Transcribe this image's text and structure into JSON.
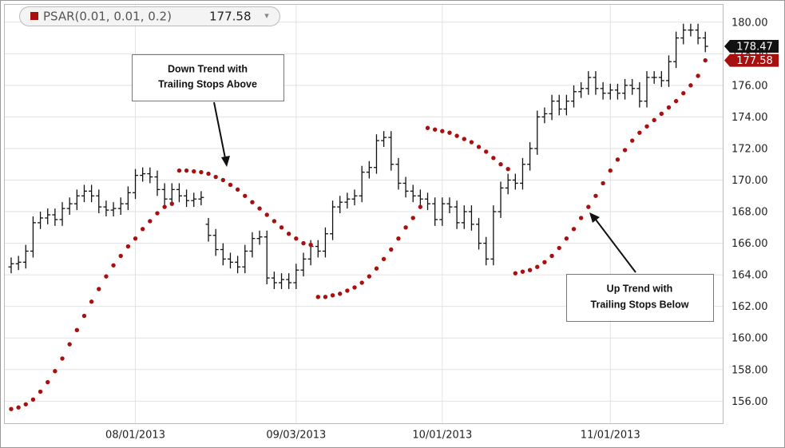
{
  "chart_data": {
    "type": "ohlc",
    "categories": [
      null,
      null,
      null,
      null,
      null,
      null,
      null,
      null,
      null,
      null,
      null,
      null,
      null,
      null,
      null,
      null,
      null,
      "08/01/2013",
      null,
      null,
      null,
      null,
      null,
      null,
      null,
      null,
      null,
      null,
      null,
      null,
      null,
      null,
      null,
      null,
      null,
      null,
      null,
      null,
      null,
      "09/03/2013",
      null,
      null,
      null,
      null,
      null,
      null,
      null,
      null,
      null,
      null,
      null,
      null,
      null,
      null,
      null,
      null,
      null,
      null,
      null,
      "10/01/2013",
      null,
      null,
      null,
      null,
      null,
      null,
      null,
      null,
      null,
      null,
      null,
      null,
      null,
      null,
      null,
      null,
      null,
      null,
      null,
      null,
      null,
      null,
      "11/01/2013",
      null,
      null,
      null,
      null,
      null,
      null,
      null,
      null,
      null,
      null,
      null,
      null,
      null
    ],
    "ohlc": {
      "color": "#111111",
      "open": [
        164.5,
        164.7,
        164.8,
        165.5,
        167.3,
        167.6,
        167.8,
        167.5,
        168.2,
        168.5,
        169.0,
        169.3,
        169.0,
        168.3,
        168.1,
        168.2,
        168.5,
        169.2,
        170.3,
        170.4,
        170.2,
        169.4,
        168.8,
        169.4,
        169.0,
        168.7,
        168.8,
        167.2,
        166.5,
        165.6,
        165.0,
        164.8,
        164.5,
        165.5,
        166.3,
        166.4,
        163.8,
        163.5,
        163.7,
        163.5,
        164.3,
        165.0,
        165.8,
        165.5,
        166.6,
        168.3,
        168.6,
        168.8,
        169.0,
        170.5,
        170.8,
        172.5,
        172.7,
        171.0,
        169.8,
        169.3,
        169.0,
        168.8,
        168.5,
        167.5,
        168.5,
        168.3,
        167.3,
        168.0,
        167.2,
        166.0,
        165.0,
        168.0,
        169.5,
        170.0,
        169.8,
        171.0,
        172.0,
        174.0,
        174.2,
        175.0,
        174.5,
        175.0,
        175.6,
        175.8,
        176.5,
        175.8,
        175.5,
        175.7,
        175.5,
        176.0,
        175.8,
        175.0,
        176.5,
        176.5,
        176.3,
        177.5,
        179.0,
        179.5,
        179.5,
        179.0
      ],
      "high": [
        165.1,
        165.2,
        165.9,
        167.7,
        168.0,
        168.2,
        168.2,
        168.6,
        168.9,
        169.4,
        169.7,
        169.7,
        169.4,
        168.7,
        168.6,
        168.9,
        169.6,
        170.7,
        170.8,
        170.8,
        170.6,
        169.8,
        169.8,
        169.8,
        169.4,
        169.2,
        169.3,
        167.6,
        166.9,
        166.0,
        165.4,
        165.2,
        165.9,
        166.7,
        166.8,
        166.8,
        164.2,
        164.1,
        164.1,
        164.7,
        165.4,
        166.2,
        166.2,
        167.0,
        168.7,
        169.0,
        169.2,
        169.4,
        170.9,
        171.2,
        172.9,
        173.1,
        173.1,
        171.4,
        170.2,
        169.7,
        169.4,
        169.2,
        168.9,
        168.9,
        168.9,
        168.7,
        168.4,
        168.4,
        167.6,
        166.4,
        168.4,
        169.9,
        170.4,
        170.4,
        171.4,
        172.4,
        174.4,
        174.6,
        175.4,
        175.4,
        175.4,
        176.0,
        176.2,
        176.9,
        176.9,
        176.2,
        176.1,
        176.1,
        176.4,
        176.4,
        176.2,
        176.9,
        176.9,
        176.9,
        177.9,
        179.4,
        179.9,
        179.9,
        179.9,
        179.4
      ],
      "low": [
        164.1,
        164.3,
        164.4,
        165.1,
        166.9,
        167.2,
        167.1,
        167.1,
        167.8,
        168.1,
        168.6,
        168.6,
        167.9,
        167.7,
        167.7,
        167.8,
        168.1,
        168.8,
        169.9,
        169.8,
        169.0,
        168.4,
        168.4,
        168.6,
        168.3,
        168.3,
        168.4,
        166.1,
        165.2,
        164.6,
        164.4,
        164.1,
        164.1,
        165.1,
        165.9,
        163.4,
        163.1,
        163.1,
        163.1,
        163.1,
        163.9,
        164.6,
        165.1,
        165.1,
        166.2,
        167.9,
        168.2,
        168.4,
        168.6,
        170.1,
        170.4,
        172.1,
        170.6,
        169.4,
        168.9,
        168.6,
        168.4,
        168.1,
        167.1,
        167.1,
        167.9,
        166.9,
        166.9,
        166.8,
        165.6,
        164.6,
        164.6,
        167.6,
        169.1,
        169.4,
        169.4,
        170.6,
        171.6,
        173.6,
        173.8,
        174.1,
        174.1,
        174.6,
        175.2,
        175.4,
        175.4,
        175.1,
        175.1,
        175.1,
        175.1,
        175.4,
        174.6,
        174.6,
        176.1,
        175.9,
        175.9,
        177.1,
        178.6,
        179.1,
        178.6,
        178.1
      ],
      "close": [
        164.7,
        164.8,
        165.5,
        167.3,
        167.6,
        167.8,
        167.5,
        168.2,
        168.5,
        169.0,
        169.3,
        169.0,
        168.3,
        168.1,
        168.2,
        168.5,
        169.2,
        170.3,
        170.4,
        170.2,
        169.4,
        168.8,
        169.4,
        169.0,
        168.7,
        168.8,
        168.9,
        166.5,
        165.6,
        165.0,
        164.8,
        164.5,
        165.5,
        166.3,
        166.4,
        163.8,
        163.5,
        163.7,
        163.5,
        164.3,
        165.0,
        165.8,
        165.5,
        166.6,
        168.3,
        168.6,
        168.8,
        169.0,
        170.5,
        170.8,
        172.5,
        172.7,
        171.0,
        169.8,
        169.3,
        169.0,
        168.8,
        168.5,
        167.5,
        168.5,
        168.3,
        167.3,
        168.0,
        167.2,
        166.0,
        165.0,
        168.0,
        169.5,
        170.0,
        169.8,
        171.0,
        172.0,
        174.0,
        174.2,
        175.0,
        174.5,
        175.0,
        175.6,
        175.8,
        176.5,
        175.8,
        175.5,
        175.7,
        175.5,
        176.0,
        175.8,
        175.0,
        176.5,
        176.5,
        176.3,
        177.5,
        179.0,
        179.5,
        179.5,
        179.0,
        178.47
      ]
    },
    "series": [
      {
        "name": "PSAR(0.01, 0.01, 0.2)",
        "color": "#a81010",
        "values": [
          155.5,
          155.6,
          155.8,
          156.1,
          156.6,
          157.2,
          157.9,
          158.7,
          159.6,
          160.5,
          161.4,
          162.3,
          163.1,
          163.9,
          164.6,
          165.2,
          165.8,
          166.3,
          166.9,
          167.4,
          167.9,
          168.3,
          168.5,
          170.6,
          170.6,
          170.55,
          170.5,
          170.4,
          170.2,
          170.0,
          169.7,
          169.4,
          169.0,
          168.6,
          168.2,
          167.8,
          167.4,
          167.0,
          166.6,
          166.3,
          166.0,
          165.9,
          162.6,
          162.6,
          162.7,
          162.8,
          163.0,
          163.2,
          163.5,
          163.9,
          164.4,
          165.0,
          165.6,
          166.3,
          167.0,
          167.6,
          168.3,
          173.3,
          173.2,
          173.1,
          173.0,
          172.8,
          172.6,
          172.4,
          172.1,
          171.8,
          171.4,
          171.0,
          170.7,
          164.1,
          164.2,
          164.3,
          164.5,
          164.8,
          165.2,
          165.7,
          166.3,
          166.9,
          167.6,
          168.3,
          169.0,
          169.8,
          170.6,
          171.3,
          171.9,
          172.5,
          173.0,
          173.4,
          173.8,
          174.2,
          174.6,
          175.0,
          175.5,
          176.0,
          176.6,
          177.58
        ]
      }
    ],
    "ylim": [
      154.6,
      181.0
    ],
    "yticks": [
      {
        "value": 156,
        "label": "156.00"
      },
      {
        "value": 158,
        "label": "158.00"
      },
      {
        "value": 160,
        "label": "160.00"
      },
      {
        "value": 162,
        "label": "162.00"
      },
      {
        "value": 164,
        "label": "164.00"
      },
      {
        "value": 166,
        "label": "166.00"
      },
      {
        "value": 168,
        "label": "168.00"
      },
      {
        "value": 170,
        "label": "170.00"
      },
      {
        "value": 172,
        "label": "172.00"
      },
      {
        "value": 174,
        "label": "174.00"
      },
      {
        "value": 176,
        "label": "176.00"
      },
      {
        "value": 178,
        "label": "178.00"
      },
      {
        "value": 180,
        "label": "180.00"
      }
    ],
    "grid": true,
    "annotations": [
      {
        "lines": [
          "Down Trend with",
          "Trailing Stops Above"
        ]
      },
      {
        "lines": [
          "Up Trend with",
          "Trailing Stops Below"
        ]
      }
    ]
  }
}
